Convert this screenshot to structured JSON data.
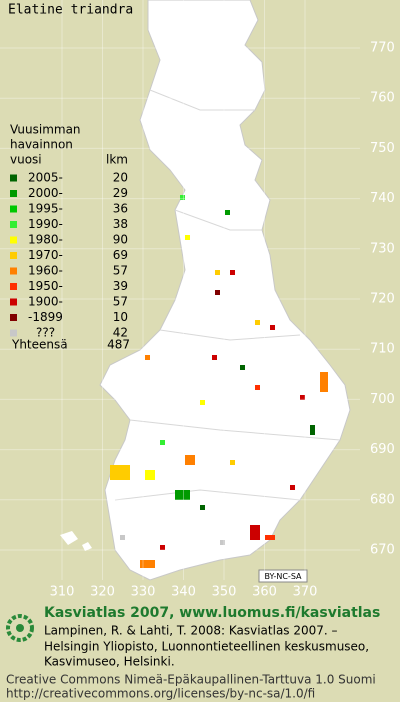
{
  "map": {
    "title": "Elatine triandra",
    "legend": {
      "heading": [
        "Vuusimman",
        "havainnon"
      ],
      "col_year": "vuosi",
      "col_count": "lkm",
      "rows": [
        {
          "label": "2005-",
          "count": 20,
          "color": "#006400"
        },
        {
          "label": "2000-",
          "count": 29,
          "color": "#009a00"
        },
        {
          "label": "1995-",
          "count": 36,
          "color": "#00c800"
        },
        {
          "label": "1990-",
          "count": 38,
          "color": "#33ee33"
        },
        {
          "label": "1980-",
          "count": 90,
          "color": "#ffff00"
        },
        {
          "label": "1970-",
          "count": 69,
          "color": "#ffcc00"
        },
        {
          "label": "1960-",
          "count": 57,
          "color": "#ff8000"
        },
        {
          "label": "1950-",
          "count": 39,
          "color": "#ff3000"
        },
        {
          "label": "1900-",
          "count": 57,
          "color": "#cc0000"
        },
        {
          "label": "-1899",
          "count": 10,
          "color": "#800000"
        },
        {
          "label": "???",
          "count": 42,
          "color": "#c8c8c8"
        }
      ],
      "total_label": "Yhteensä",
      "total": 487
    },
    "xticks": [
      310,
      320,
      330,
      340,
      350,
      360,
      370
    ],
    "yticks": [
      770,
      760,
      750,
      740,
      730,
      720,
      710,
      700,
      690,
      680,
      670
    ],
    "license_badge": "BY-NC-SA"
  },
  "footer": {
    "headline": "Kasviatlas 2007, www.luomus.fi/kasviatlas",
    "citation": [
      "Lampinen, R. & Lahti, T. 2008: Kasviatlas 2007. –",
      "Helsingin Yliopisto, Luonnontieteellinen keskusmuseo,",
      "Kasvimuseo, Helsinki."
    ],
    "license": [
      "Creative Commons Nimeä-Epäkaupallinen-Tarttuva 1.0 Suomi",
      "http://creativecommons.org/licenses/by-nc-sa/1.0/fi"
    ]
  }
}
